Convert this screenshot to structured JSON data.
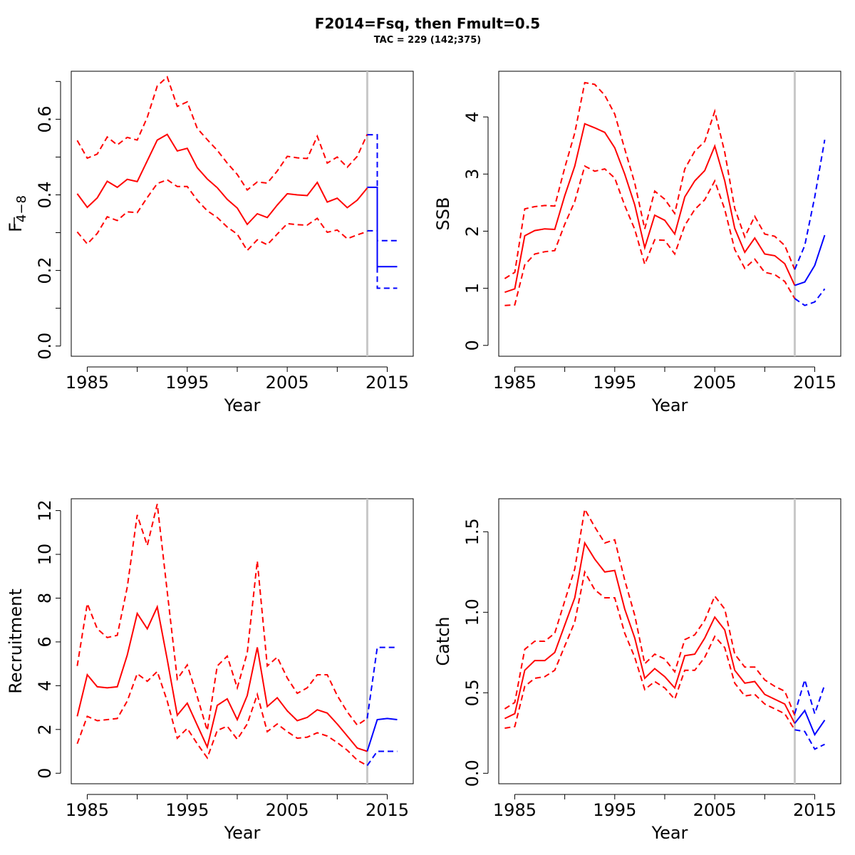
{
  "figure": {
    "title": "F2014=Fsq, then Fmult=0.5",
    "subtitle": "TAC = 229 (142;375)"
  },
  "colors": {
    "historic": "#ff0000",
    "projection": "#0000ff",
    "divider": "#c8c8c8",
    "axis": "#000000"
  },
  "chart_data": [
    {
      "type": "line",
      "panel": "top-left",
      "xlabel": "Year",
      "ylabel": "F",
      "ylabel_subscript": "4−8",
      "xlim": [
        1983.4,
        2017.6
      ],
      "ylim": [
        -0.027,
        0.727
      ],
      "xticks": [
        1985,
        1990,
        1995,
        2000,
        2005,
        2010,
        2015
      ],
      "xtick_labels": [
        "1985",
        "1995",
        "2005",
        "2015"
      ],
      "yticks": [
        0,
        0.1,
        0.2,
        0.3,
        0.4,
        0.5,
        0.6,
        0.7
      ],
      "ytick_labels": [
        "0.0",
        "0.2",
        "0.4",
        "0.6"
      ],
      "divider_x": 2013,
      "x": [
        1984,
        1985,
        1986,
        1987,
        1988,
        1989,
        1990,
        1991,
        1992,
        1993,
        1994,
        1995,
        1996,
        1997,
        1998,
        1999,
        2000,
        2001,
        2002,
        2003,
        2004,
        2005,
        2006,
        2007,
        2008,
        2009,
        2010,
        2011,
        2012,
        2013
      ],
      "series": [
        {
          "role": "estimate",
          "values": [
            0.403,
            0.367,
            0.392,
            0.436,
            0.42,
            0.441,
            0.435,
            0.49,
            0.545,
            0.56,
            0.516,
            0.523,
            0.472,
            0.442,
            0.419,
            0.388,
            0.365,
            0.322,
            0.35,
            0.34,
            0.373,
            0.403,
            0.4,
            0.398,
            0.433,
            0.381,
            0.391,
            0.366,
            0.386,
            0.418
          ]
        },
        {
          "role": "upper",
          "values": [
            0.544,
            0.497,
            0.508,
            0.553,
            0.532,
            0.552,
            0.545,
            0.605,
            0.688,
            0.712,
            0.634,
            0.646,
            0.576,
            0.546,
            0.518,
            0.484,
            0.454,
            0.413,
            0.434,
            0.431,
            0.463,
            0.502,
            0.498,
            0.496,
            0.555,
            0.484,
            0.5,
            0.473,
            0.502,
            0.56
          ]
        },
        {
          "role": "lower",
          "values": [
            0.302,
            0.27,
            0.298,
            0.342,
            0.332,
            0.355,
            0.353,
            0.393,
            0.43,
            0.44,
            0.422,
            0.422,
            0.386,
            0.358,
            0.34,
            0.315,
            0.296,
            0.253,
            0.281,
            0.268,
            0.296,
            0.324,
            0.321,
            0.32,
            0.338,
            0.301,
            0.307,
            0.284,
            0.294,
            0.303
          ]
        }
      ],
      "projection": {
        "x_steps": [
          2013,
          2014,
          2014,
          2015,
          2015,
          2016
        ],
        "estimate": [
          0.42,
          0.42,
          0.21,
          0.21,
          0.21,
          0.21
        ],
        "upper": [
          0.559,
          0.559,
          0.279,
          0.279,
          0.279,
          0.279
        ],
        "lower": [
          0.305,
          0.305,
          0.153,
          0.153,
          0.153,
          0.153
        ]
      }
    },
    {
      "type": "line",
      "panel": "top-right",
      "xlabel": "Year",
      "ylabel": "SSB",
      "xlim": [
        1983.4,
        2017.6
      ],
      "ylim": [
        -0.19,
        4.8
      ],
      "xticks": [
        1985,
        1990,
        1995,
        2000,
        2005,
        2010,
        2015
      ],
      "xtick_labels": [
        "1985",
        "1995",
        "2005",
        "2015"
      ],
      "yticks": [
        0,
        1,
        2,
        3,
        4
      ],
      "ytick_labels": [
        "0",
        "1",
        "2",
        "3",
        "4"
      ],
      "divider_x": 2013,
      "x": [
        1984,
        1985,
        1986,
        1987,
        1988,
        1989,
        1990,
        1991,
        1992,
        1993,
        1994,
        1995,
        1996,
        1997,
        1998,
        1999,
        2000,
        2001,
        2002,
        2003,
        2004,
        2005,
        2006,
        2007,
        2008,
        2009,
        2010,
        2011,
        2012,
        2013,
        2014,
        2015,
        2016
      ],
      "series": [
        {
          "role": "estimate",
          "values": [
            0.93,
            0.99,
            1.92,
            2.01,
            2.04,
            2.03,
            2.62,
            3.14,
            3.88,
            3.81,
            3.73,
            3.46,
            3.0,
            2.46,
            1.71,
            2.28,
            2.19,
            1.95,
            2.6,
            2.88,
            3.06,
            3.49,
            2.88,
            2.05,
            1.63,
            1.88,
            1.6,
            1.57,
            1.43,
            1.05,
            null,
            null,
            null
          ]
        },
        {
          "role": "upper",
          "values": [
            1.17,
            1.28,
            2.39,
            2.43,
            2.45,
            2.44,
            3.11,
            3.72,
            4.6,
            4.57,
            4.38,
            4.05,
            3.44,
            2.84,
            2.04,
            2.7,
            2.56,
            2.31,
            3.09,
            3.4,
            3.57,
            4.1,
            3.38,
            2.4,
            1.9,
            2.26,
            1.95,
            1.91,
            1.75,
            1.33,
            null,
            null,
            null
          ]
        },
        {
          "role": "lower",
          "values": [
            0.7,
            0.71,
            1.41,
            1.6,
            1.64,
            1.66,
            2.12,
            2.52,
            3.14,
            3.05,
            3.09,
            2.93,
            2.45,
            2.03,
            1.42,
            1.85,
            1.84,
            1.6,
            2.1,
            2.38,
            2.55,
            2.88,
            2.38,
            1.68,
            1.35,
            1.51,
            1.28,
            1.24,
            1.12,
            0.82,
            null,
            null,
            null
          ]
        }
      ],
      "projection": {
        "x": [
          2013,
          2014,
          2015,
          2016
        ],
        "estimate": [
          1.05,
          1.11,
          1.4,
          1.93
        ],
        "upper": [
          1.33,
          1.75,
          2.6,
          3.6
        ],
        "lower": [
          0.82,
          0.7,
          0.76,
          0.99
        ]
      }
    },
    {
      "type": "line",
      "panel": "bottom-left",
      "xlabel": "Year",
      "ylabel": "Recruitment",
      "xlim": [
        1983.4,
        2017.6
      ],
      "ylim": [
        -0.48,
        12.54
      ],
      "xticks": [
        1985,
        1990,
        1995,
        2000,
        2005,
        2010,
        2015
      ],
      "xtick_labels": [
        "1985",
        "1995",
        "2005",
        "2015"
      ],
      "yticks": [
        0,
        2,
        4,
        6,
        8,
        10,
        12
      ],
      "ytick_labels": [
        "0",
        "2",
        "4",
        "6",
        "8",
        "10",
        "12"
      ],
      "divider_x": 2013,
      "x": [
        1984,
        1985,
        1986,
        1987,
        1988,
        1989,
        1990,
        1991,
        1992,
        1993,
        1994,
        1995,
        1996,
        1997,
        1998,
        1999,
        2000,
        2001,
        2002,
        2003,
        2004,
        2005,
        2006,
        2007,
        2008,
        2009,
        2010,
        2011,
        2012,
        2013
      ],
      "series": [
        {
          "role": "estimate",
          "values": [
            2.6,
            4.5,
            3.95,
            3.9,
            3.95,
            5.4,
            7.3,
            6.6,
            7.6,
            5.2,
            2.65,
            3.2,
            2.2,
            1.2,
            3.1,
            3.4,
            2.45,
            3.55,
            5.75,
            3.05,
            3.45,
            2.85,
            2.4,
            2.55,
            2.9,
            2.75,
            2.25,
            1.7,
            1.15,
            1.0
          ]
        },
        {
          "role": "upper",
          "values": [
            4.9,
            7.75,
            6.6,
            6.2,
            6.3,
            8.5,
            11.8,
            10.4,
            12.3,
            8.3,
            4.3,
            4.95,
            3.5,
            1.95,
            4.9,
            5.35,
            3.9,
            5.5,
            9.7,
            4.9,
            5.3,
            4.35,
            3.65,
            3.9,
            4.5,
            4.5,
            3.55,
            2.8,
            2.2,
            2.5
          ]
        },
        {
          "role": "lower",
          "values": [
            1.35,
            2.6,
            2.4,
            2.45,
            2.5,
            3.3,
            4.55,
            4.2,
            4.65,
            3.3,
            1.6,
            2.05,
            1.35,
            0.7,
            1.95,
            2.15,
            1.55,
            2.25,
            3.6,
            1.9,
            2.25,
            1.9,
            1.6,
            1.65,
            1.85,
            1.7,
            1.4,
            1.05,
            0.6,
            0.35
          ]
        }
      ],
      "projection": {
        "x": [
          2013,
          2014,
          2015,
          2016
        ],
        "estimate": [
          1.0,
          2.45,
          2.5,
          2.45
        ],
        "upper": [
          2.5,
          5.75,
          5.75,
          5.75
        ],
        "lower": [
          0.35,
          1.0,
          1.0,
          1.0
        ]
      }
    },
    {
      "type": "line",
      "panel": "bottom-right",
      "xlabel": "Year",
      "ylabel": "Catch",
      "xlim": [
        1983.4,
        2017.6
      ],
      "ylim": [
        -0.065,
        1.705
      ],
      "xticks": [
        1985,
        1990,
        1995,
        2000,
        2005,
        2010,
        2015
      ],
      "xtick_labels": [
        "1985",
        "1995",
        "2005",
        "2015"
      ],
      "yticks": [
        0,
        0.5,
        1.0,
        1.5
      ],
      "ytick_labels": [
        "0.0",
        "0.5",
        "1.0",
        "1.5"
      ],
      "divider_x": 2013,
      "x": [
        1984,
        1985,
        1986,
        1987,
        1988,
        1989,
        1990,
        1991,
        1992,
        1993,
        1994,
        1995,
        1996,
        1997,
        1998,
        1999,
        2000,
        2001,
        2002,
        2003,
        2004,
        2005,
        2006,
        2007,
        2008,
        2009,
        2010,
        2011,
        2012,
        2013
      ],
      "series": [
        {
          "role": "estimate",
          "values": [
            0.34,
            0.37,
            0.64,
            0.7,
            0.7,
            0.75,
            0.92,
            1.09,
            1.43,
            1.33,
            1.25,
            1.26,
            1.02,
            0.84,
            0.59,
            0.65,
            0.6,
            0.53,
            0.73,
            0.74,
            0.84,
            0.97,
            0.89,
            0.64,
            0.56,
            0.57,
            0.49,
            0.46,
            0.43,
            0.31
          ]
        },
        {
          "role": "upper",
          "values": [
            0.4,
            0.44,
            0.77,
            0.82,
            0.82,
            0.87,
            1.07,
            1.27,
            1.64,
            1.53,
            1.43,
            1.45,
            1.2,
            0.98,
            0.68,
            0.74,
            0.71,
            0.63,
            0.83,
            0.86,
            0.95,
            1.1,
            1.02,
            0.74,
            0.66,
            0.66,
            0.58,
            0.54,
            0.51,
            0.36
          ]
        },
        {
          "role": "lower",
          "values": [
            0.28,
            0.29,
            0.54,
            0.59,
            0.6,
            0.64,
            0.79,
            0.94,
            1.25,
            1.14,
            1.09,
            1.09,
            0.87,
            0.72,
            0.52,
            0.57,
            0.53,
            0.46,
            0.64,
            0.64,
            0.72,
            0.85,
            0.78,
            0.56,
            0.48,
            0.49,
            0.43,
            0.4,
            0.37,
            0.27
          ]
        }
      ],
      "projection": {
        "x": [
          2013,
          2014,
          2015,
          2016
        ],
        "estimate": [
          0.31,
          0.39,
          0.24,
          0.33
        ],
        "upper": [
          0.37,
          0.58,
          0.37,
          0.55
        ],
        "lower": [
          0.27,
          0.26,
          0.15,
          0.18
        ]
      }
    }
  ]
}
